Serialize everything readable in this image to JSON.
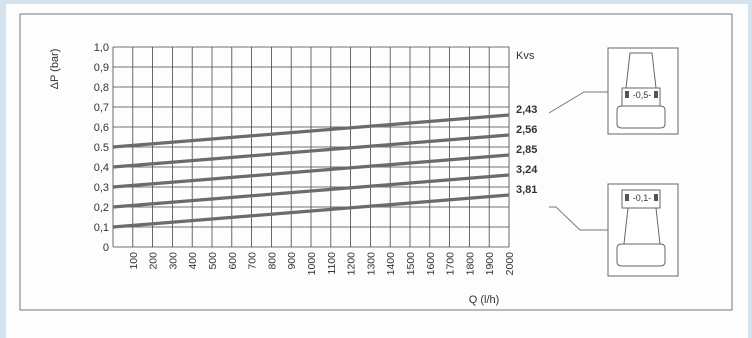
{
  "chart_data": {
    "type": "line",
    "title": "",
    "xlabel": "Q (l/h)",
    "ylabel": "ΔP (bar)",
    "x_ticks": [
      100,
      200,
      300,
      400,
      500,
      600,
      700,
      800,
      900,
      1000,
      1100,
      1200,
      1300,
      1400,
      1500,
      1600,
      1700,
      1800,
      1900,
      2000
    ],
    "y_ticks": [
      "0",
      "0,1",
      "0,2",
      "0,3",
      "0,4",
      "0.5",
      "0,6",
      "0,7",
      "0,8",
      "0,9",
      "1,0"
    ],
    "xlim": [
      0,
      2000
    ],
    "ylim": [
      0,
      1.0
    ],
    "grid": true,
    "legend_title": "Kvs",
    "series": [
      {
        "name": "2,43",
        "x": [
          0,
          2000
        ],
        "y": [
          0.5,
          0.66
        ]
      },
      {
        "name": "2,56",
        "x": [
          0,
          2000
        ],
        "y": [
          0.4,
          0.56
        ]
      },
      {
        "name": "2,85",
        "x": [
          0,
          2000
        ],
        "y": [
          0.3,
          0.46
        ]
      },
      {
        "name": "3,24",
        "x": [
          0,
          2000
        ],
        "y": [
          0.2,
          0.36
        ]
      },
      {
        "name": "3,81",
        "x": [
          0,
          2000
        ],
        "y": [
          0.1,
          0.26
        ]
      }
    ],
    "annotations": [
      "-0,5-",
      "-0,1-"
    ]
  },
  "colors": {
    "line": "#6b6b6b",
    "grid": "#444444",
    "border": "#777777",
    "background": "#d4e3ee"
  }
}
